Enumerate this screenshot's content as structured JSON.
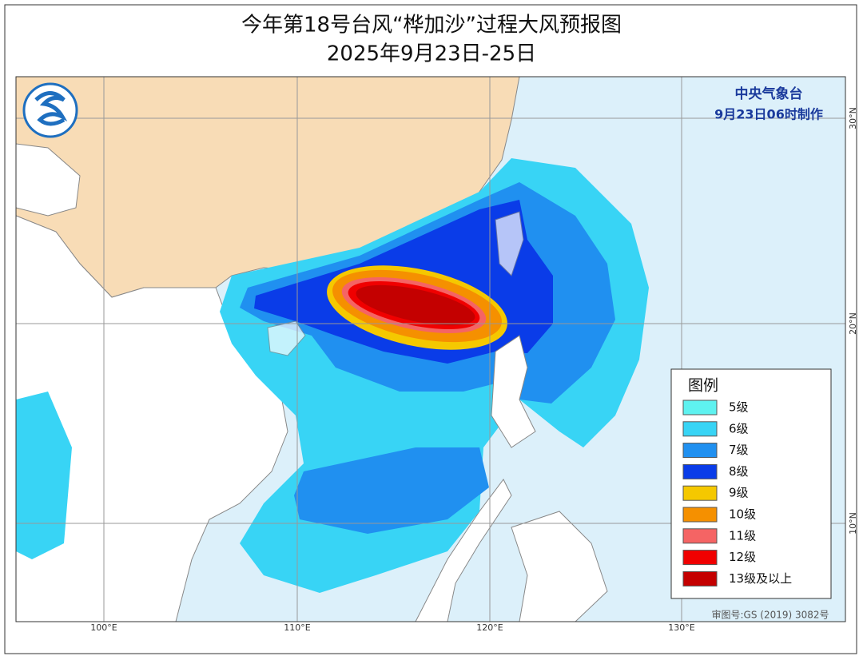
{
  "header": {
    "title": "今年第18号台风“桦加沙”过程大风预报图",
    "subtitle": "2025年9月23日-25日"
  },
  "agency": {
    "name": "中央气象台",
    "issued": "9月23日06时制作"
  },
  "legend": {
    "title": "图例",
    "items": [
      {
        "label": "5级",
        "color": "#5ef2f0"
      },
      {
        "label": "6级",
        "color": "#38d4f5"
      },
      {
        "label": "7级",
        "color": "#2090f0"
      },
      {
        "label": "8级",
        "color": "#0a3ce8"
      },
      {
        "label": "9级",
        "color": "#f5c800"
      },
      {
        "label": "10级",
        "color": "#f59000"
      },
      {
        "label": "11级",
        "color": "#f56464"
      },
      {
        "label": "12级",
        "color": "#f00000"
      },
      {
        "label": "13级及以上",
        "color": "#c40000"
      }
    ]
  },
  "axes": {
    "longitude": [
      "100°E",
      "110°E",
      "120°E",
      "130°E"
    ],
    "latitude": [
      "30°N",
      "20°N",
      "10°N"
    ]
  },
  "footer": "审图号:GS (2019) 3082号"
}
